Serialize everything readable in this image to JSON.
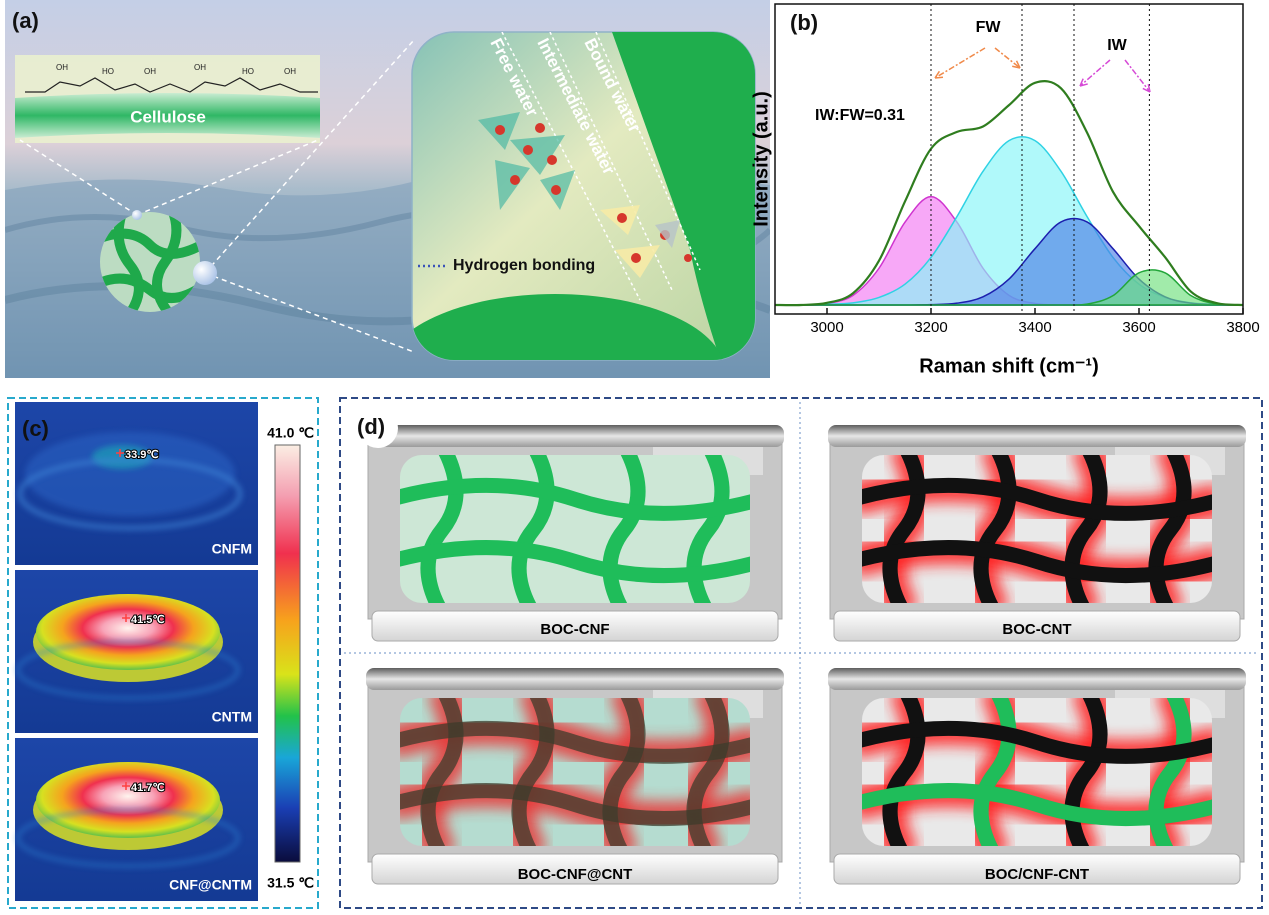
{
  "panel_a": {
    "label": "(a)",
    "cellulose": "Cellulose",
    "molecule_labels": [
      "OH",
      "HO",
      "OH",
      "OH",
      "HO",
      "OH"
    ],
    "regions": [
      "Free water",
      "Intermediate water",
      "Bound water"
    ],
    "legend": "Hydrogen bonding"
  },
  "chart_data": {
    "type": "line",
    "panel_label": "(b)",
    "x_label": "Raman shift (cm⁻¹)",
    "y_label": "Intensity (a.u.)",
    "x": [
      2900,
      2950,
      3000,
      3050,
      3100,
      3150,
      3200,
      3250,
      3300,
      3350,
      3400,
      3450,
      3500,
      3550,
      3600,
      3650,
      3700,
      3750,
      3800
    ],
    "series": [
      {
        "color": "#f27af2",
        "edge_color": "#cf34cf",
        "fill": true,
        "values": [
          0,
          0,
          0.005,
          0.032,
          0.122,
          0.275,
          0.36,
          0.275,
          0.122,
          0.032,
          0.005,
          0,
          0,
          0,
          0,
          0,
          0,
          0,
          0
        ]
      },
      {
        "color": "#86f6f8",
        "edge_color": "#2fd2e4",
        "fill": true,
        "values": [
          0,
          0,
          0.002,
          0.007,
          0.025,
          0.069,
          0.158,
          0.294,
          0.444,
          0.546,
          0.546,
          0.444,
          0.294,
          0.158,
          0.069,
          0.025,
          0.007,
          0.002,
          0
        ]
      },
      {
        "color": "#4f7fe6",
        "edge_color": "#1c1fae",
        "fill": true,
        "values": [
          0,
          0,
          0,
          0,
          0,
          0,
          0.001,
          0.006,
          0.027,
          0.086,
          0.187,
          0.276,
          0.276,
          0.187,
          0.086,
          0.027,
          0.006,
          0.001,
          0
        ]
      },
      {
        "color": "#6fe07c",
        "edge_color": "#23a63a",
        "fill": true,
        "values": [
          0,
          0,
          0,
          0,
          0,
          0,
          0,
          0,
          0,
          0,
          0,
          0,
          0.003,
          0.031,
          0.107,
          0.107,
          0.031,
          0.003,
          0
        ]
      },
      {
        "color": "#2f7d1f",
        "edge_color": "#2f7d1f",
        "fill": false,
        "values": [
          0,
          0,
          0.007,
          0.039,
          0.147,
          0.344,
          0.519,
          0.575,
          0.593,
          0.664,
          0.738,
          0.72,
          0.573,
          0.376,
          0.262,
          0.159,
          0.044,
          0.006,
          0
        ]
      }
    ],
    "xlim": [
      2900,
      3800
    ],
    "xticks": [
      3000,
      3200,
      3400,
      3600,
      3800
    ],
    "ylim": [
      -0.03,
      1
    ],
    "vlines": [
      3200,
      3375,
      3475,
      3620
    ],
    "annotations": [
      "FW",
      "IW",
      "IW:FW=0.31"
    ]
  },
  "panel_c": {
    "label": "(c)",
    "images": [
      {
        "name": "CNFM",
        "temperature": "33.9℃"
      },
      {
        "name": "CNTM",
        "temperature": "41.5℃"
      },
      {
        "name": "CNF@CNTM",
        "temperature": "41.7℃"
      }
    ],
    "colorbar": {
      "max": "41.0 ℃",
      "min": "31.5 ℃"
    }
  },
  "panel_d": {
    "label": "(d)",
    "samples": [
      "BOC-CNF",
      "BOC-CNT",
      "BOC-CNF@CNT",
      "BOC/CNF-CNT"
    ]
  }
}
